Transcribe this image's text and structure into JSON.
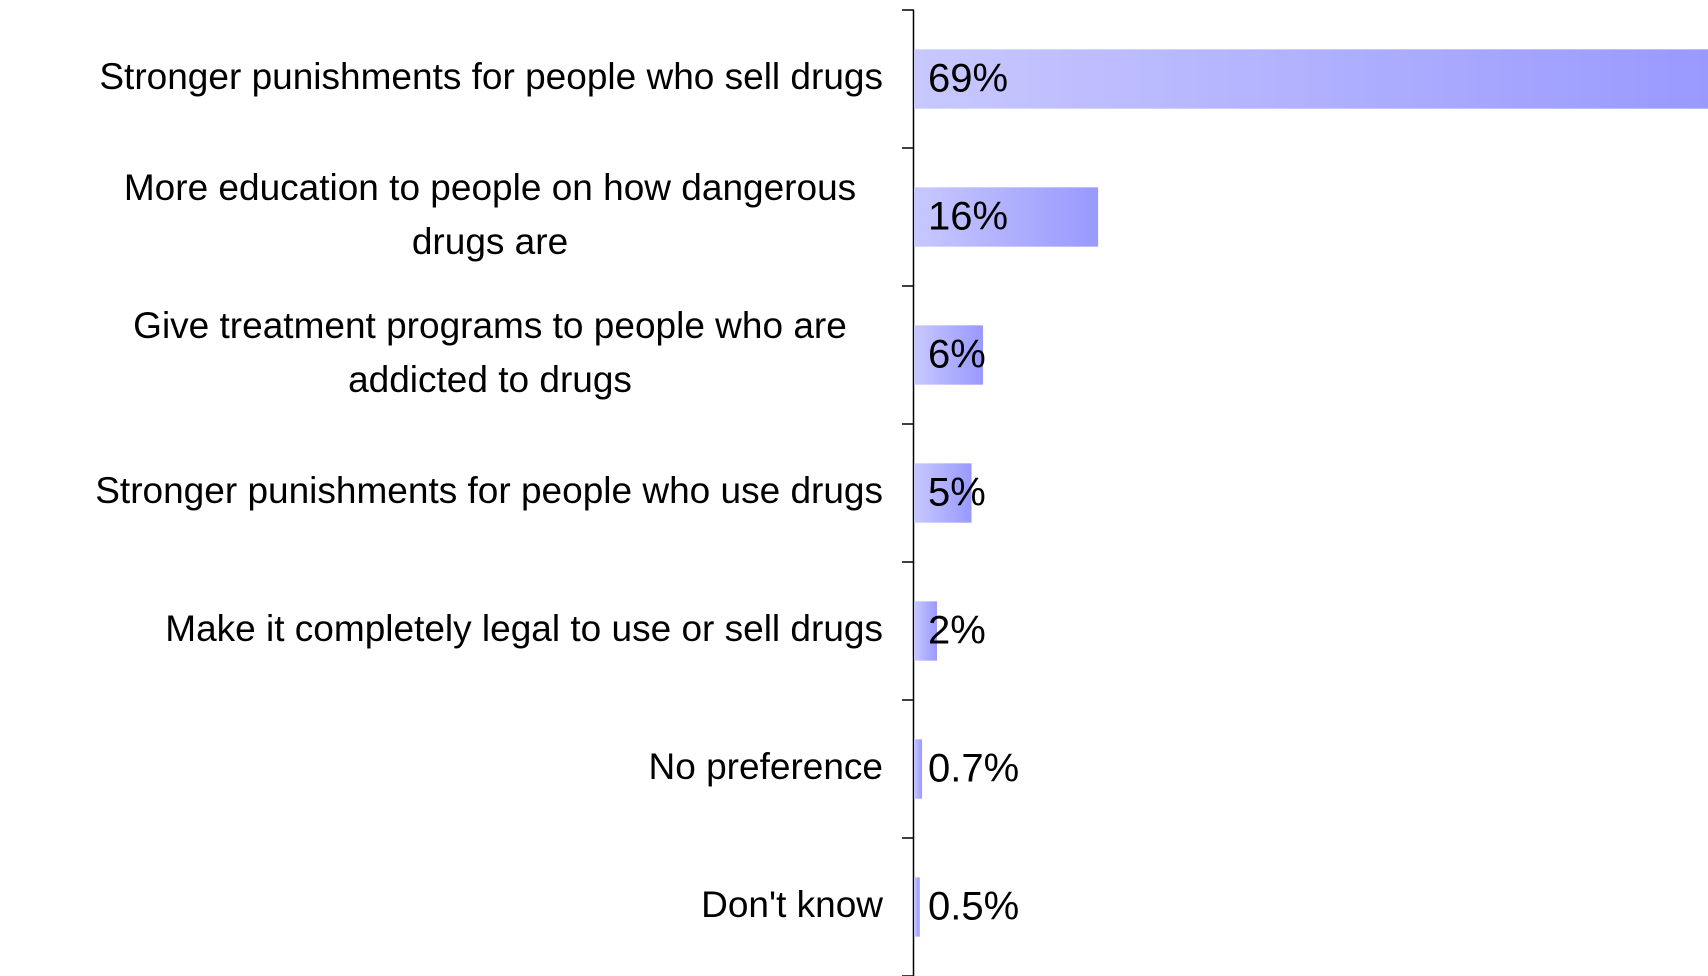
{
  "chart_data": {
    "type": "bar",
    "orientation": "horizontal",
    "categories": [
      [
        "Stronger punishments for people who sell drugs"
      ],
      [
        "More education to people on how dangerous",
        "drugs are"
      ],
      [
        "Give treatment programs to people who are",
        "addicted to drugs"
      ],
      [
        "Stronger punishments for people who use drugs"
      ],
      [
        "Make it completely legal to use or sell drugs"
      ],
      [
        "No preference"
      ],
      [
        "Don't know"
      ]
    ],
    "values": [
      69,
      16,
      6,
      5,
      2,
      0.7,
      0.5
    ],
    "value_labels": [
      "69%",
      "16%",
      "6%",
      "5%",
      "2%",
      "0.7%",
      "0.5%"
    ],
    "xlim": [
      0,
      69
    ],
    "grid": false,
    "legend": "none",
    "bar_gradient": [
      "#c8c8ff",
      "#9999ff"
    ]
  }
}
